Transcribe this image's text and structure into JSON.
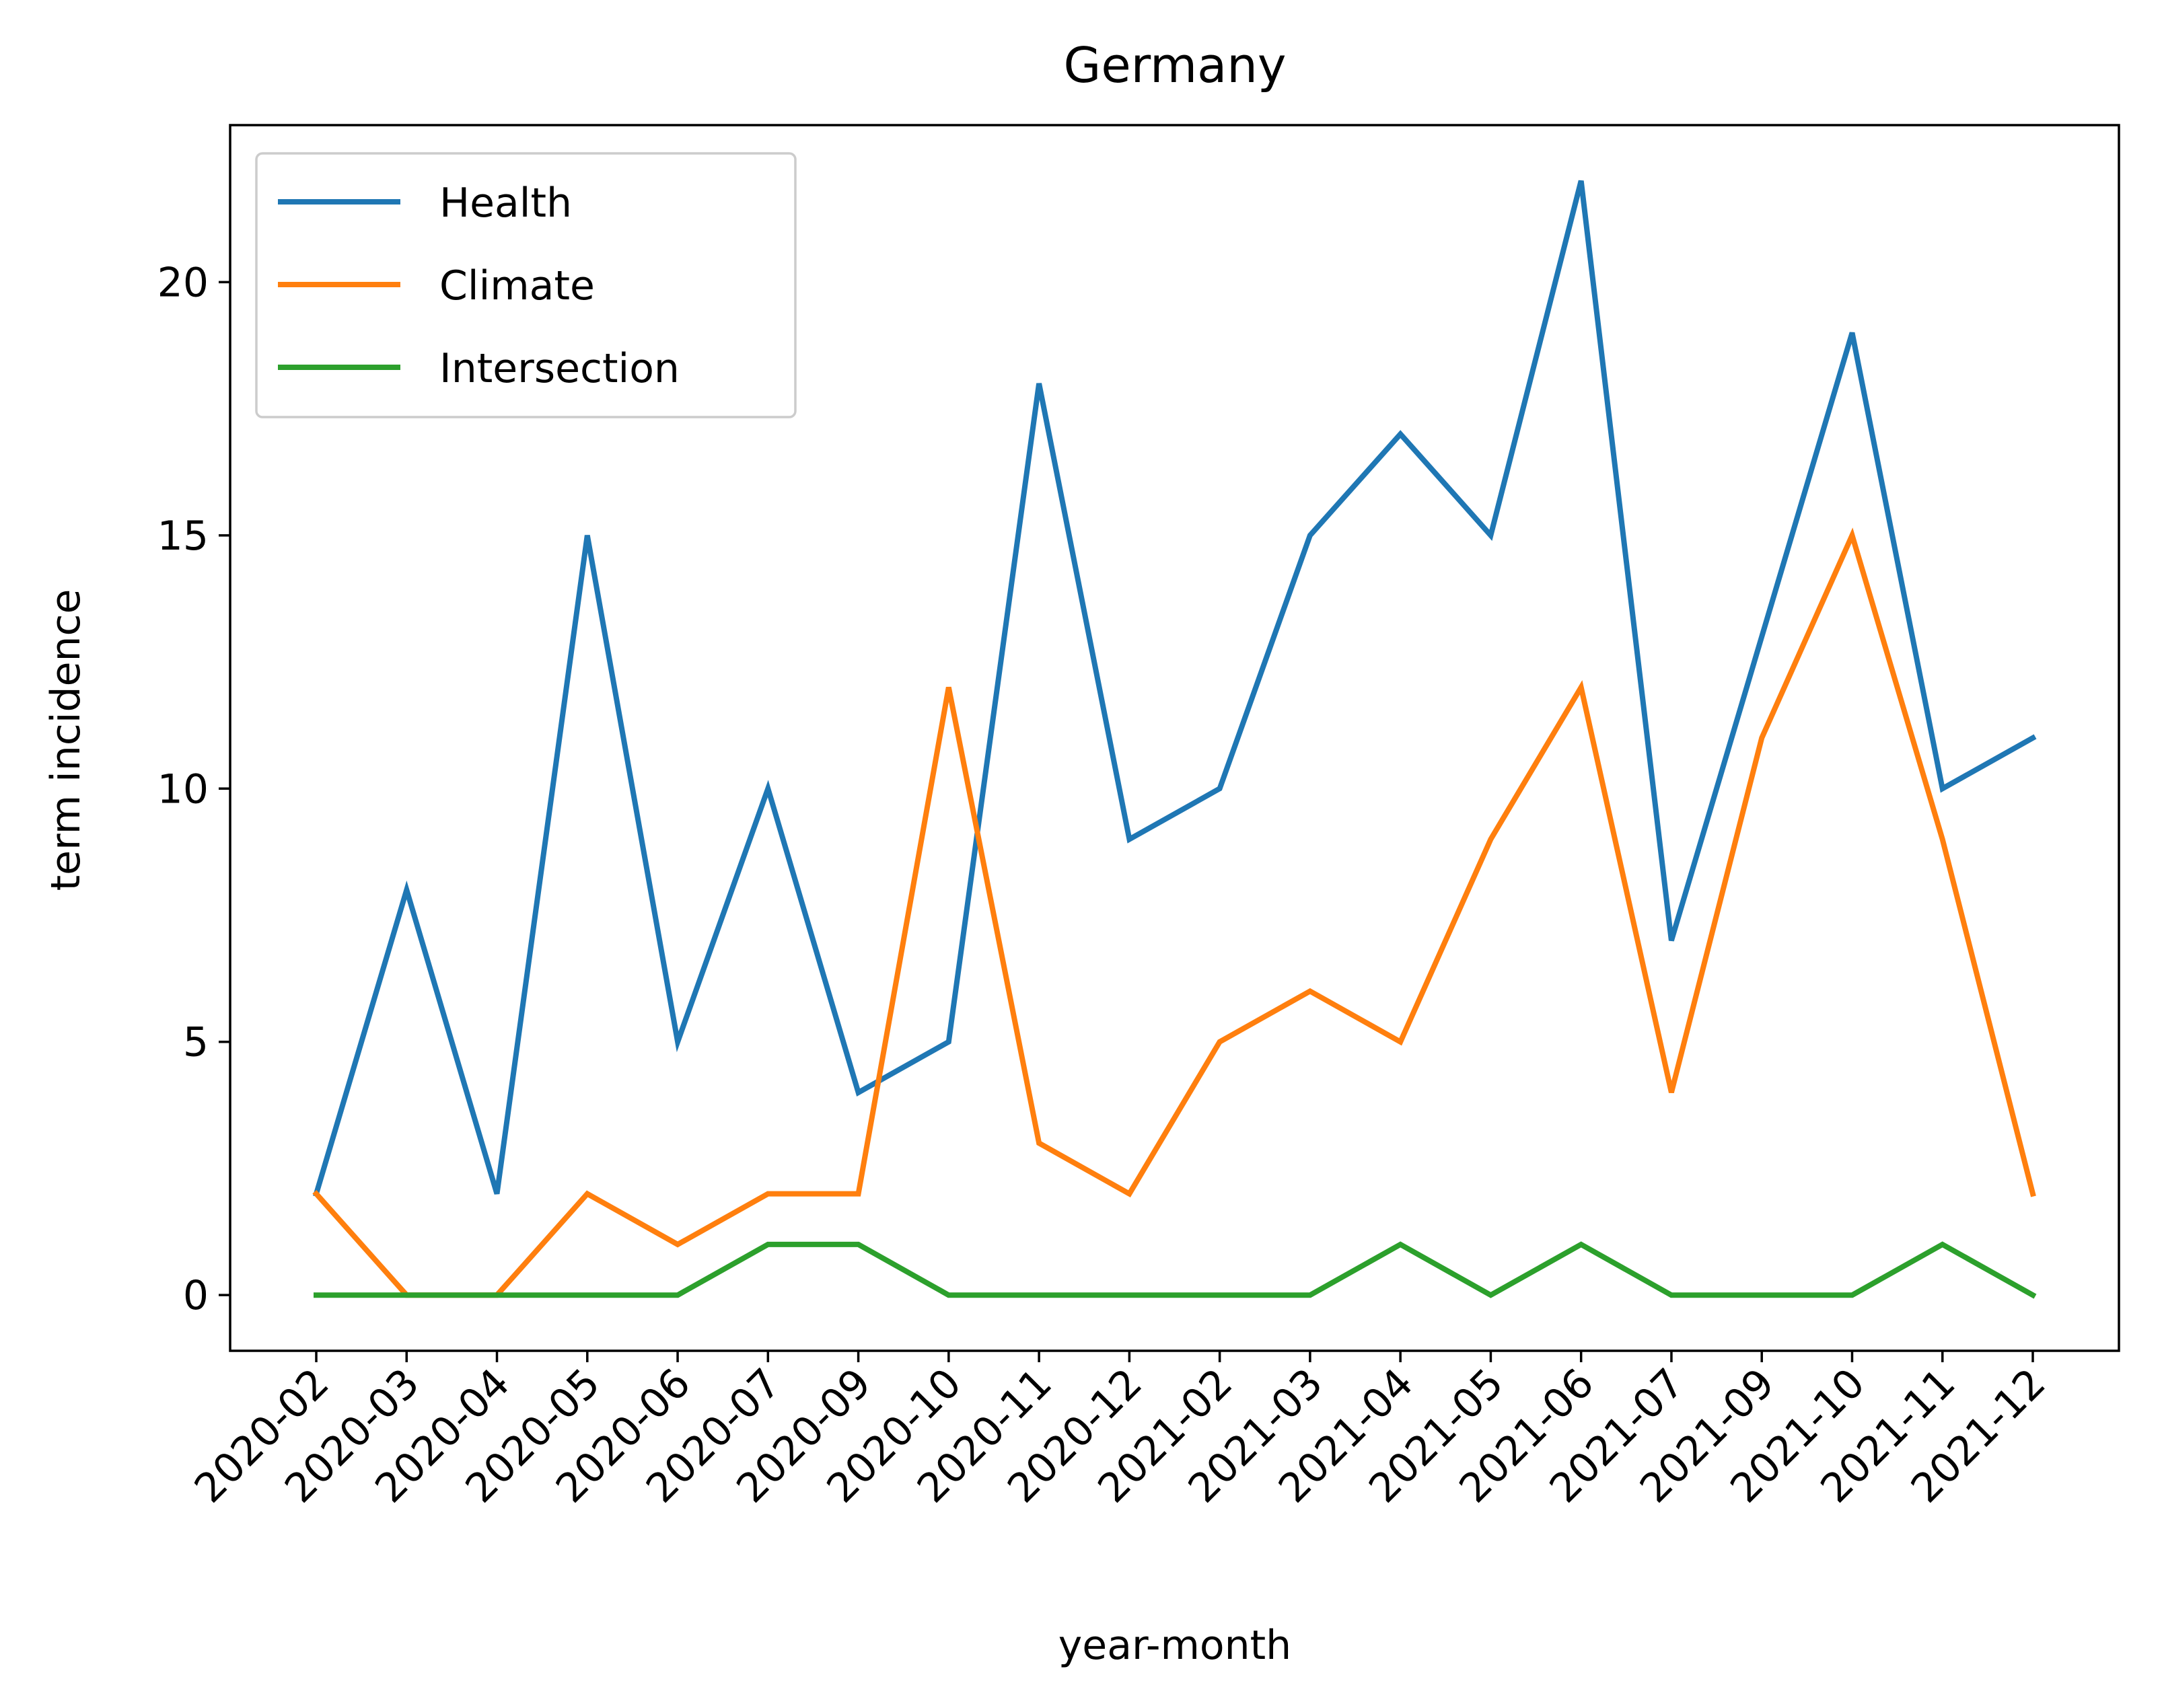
{
  "chart_data": {
    "type": "line",
    "title": "Germany",
    "xlabel": "year-month",
    "ylabel": "term incidence",
    "categories": [
      "2020-02",
      "2020-03",
      "2020-04",
      "2020-05",
      "2020-06",
      "2020-07",
      "2020-09",
      "2020-10",
      "2020-11",
      "2020-12",
      "2021-02",
      "2021-03",
      "2021-04",
      "2021-05",
      "2021-06",
      "2021-07",
      "2021-09",
      "2021-10",
      "2021-11",
      "2021-12"
    ],
    "yticks": [
      0,
      5,
      10,
      15,
      20
    ],
    "ylim": [
      -1.1,
      23.1
    ],
    "grid": false,
    "legend_position": "upper-left",
    "series": [
      {
        "name": "Health",
        "color": "#1f77b4",
        "values": [
          2,
          8,
          2,
          15,
          5,
          10,
          4,
          5,
          18,
          9,
          10,
          15,
          17,
          15,
          22,
          7,
          13,
          19,
          10,
          11
        ]
      },
      {
        "name": "Climate",
        "color": "#ff7f0e",
        "values": [
          2,
          0,
          0,
          2,
          1,
          2,
          2,
          12,
          3,
          2,
          5,
          6,
          5,
          9,
          12,
          4,
          11,
          15,
          9,
          2
        ]
      },
      {
        "name": "Intersection",
        "color": "#2ca02c",
        "values": [
          0,
          0,
          0,
          0,
          0,
          1,
          1,
          0,
          0,
          0,
          0,
          0,
          1,
          0,
          1,
          0,
          0,
          0,
          1,
          0
        ]
      }
    ]
  }
}
